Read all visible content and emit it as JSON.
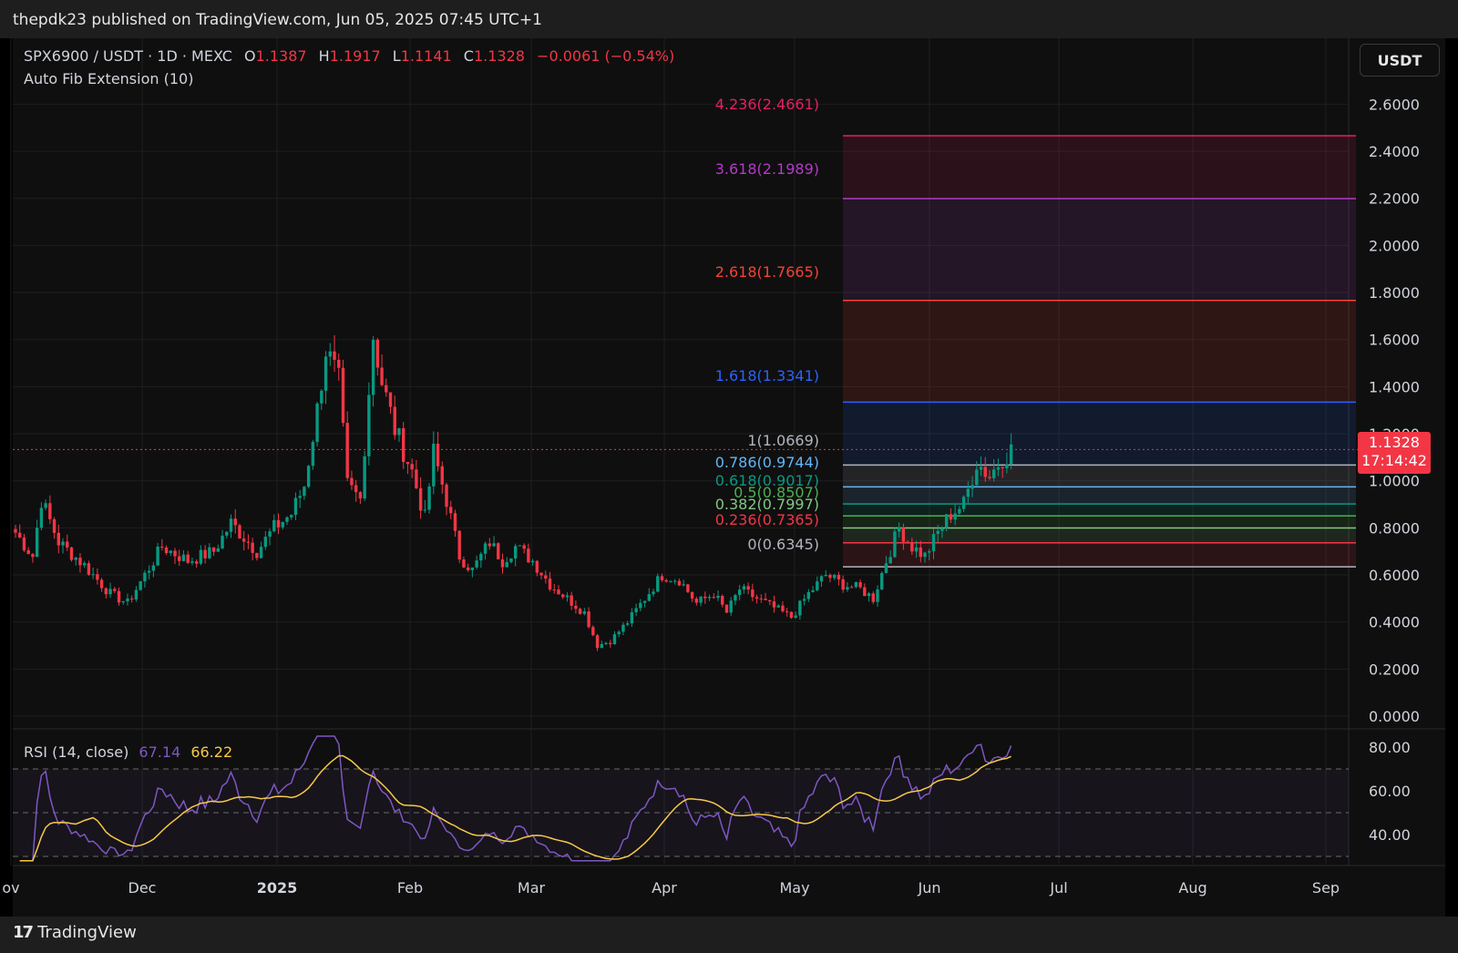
{
  "header": {
    "published": "thepdk23 published on TradingView.com, Jun 05, 2025 07:45 UTC+1"
  },
  "legend": {
    "symbol": "SPX6900 / USDT · 1D · MEXC",
    "o_label": "O",
    "o_value": "1.1387",
    "h_label": "H",
    "h_value": "1.1917",
    "l_label": "L",
    "l_value": "1.1141",
    "c_label": "C",
    "c_value": "1.1328",
    "change": "−0.0061 (−0.54%)",
    "indicator": "Auto Fib Extension (10)"
  },
  "rsi_legend": {
    "label": "RSI (14, close)",
    "rsi_value": "67.14",
    "ma_value": "66.22"
  },
  "currency_button": "USDT",
  "price_tag": {
    "price": "1.1328",
    "countdown": "17:14:42"
  },
  "footer": {
    "brand": "TradingView"
  },
  "colors": {
    "up": "#089981",
    "down": "#f23645",
    "rsi": "#7e57c2",
    "rsi_ma": "#f7c948",
    "background": "#0f0f0f"
  },
  "chart_data": {
    "type": "candlestick",
    "price_axis": {
      "ticks": [
        "2.6000",
        "2.4000",
        "2.2000",
        "2.0000",
        "1.8000",
        "1.6000",
        "1.4000",
        "1.2000",
        "1.0000",
        "0.8000",
        "0.6000",
        "0.4000",
        "0.2000",
        "0.0000"
      ],
      "ylim": [
        0,
        2.6
      ]
    },
    "time_axis": {
      "ticks": [
        "ov",
        "Dec",
        "2025",
        "Feb",
        "Mar",
        "Apr",
        "May",
        "Jun",
        "Jul",
        "Aug",
        "Sep"
      ]
    },
    "fib_levels": [
      {
        "label": "4.236(2.4661)",
        "price": 2.4661,
        "color": "#e91e63"
      },
      {
        "label": "3.618(2.1989)",
        "price": 2.1989,
        "color": "#b23ac7"
      },
      {
        "label": "2.618(1.7665)",
        "price": 1.7665,
        "color": "#f44336"
      },
      {
        "label": "1.618(1.3341)",
        "price": 1.3341,
        "color": "#2962ff"
      },
      {
        "label": "1(1.0669)",
        "price": 1.0669,
        "color": "#b2b5be"
      },
      {
        "label": "0.786(0.9744)",
        "price": 0.9744,
        "color": "#64b5f6"
      },
      {
        "label": "0.618(0.9017)",
        "price": 0.9017,
        "color": "#089981"
      },
      {
        "label": "0.5(0.8507)",
        "price": 0.8507,
        "color": "#4caf50"
      },
      {
        "label": "0.382(0.7997)",
        "price": 0.7997,
        "color": "#81c784"
      },
      {
        "label": "0.236(0.7365)",
        "price": 0.7365,
        "color": "#f23645"
      },
      {
        "label": "0(0.6345)",
        "price": 0.6345,
        "color": "#b2b5be"
      }
    ],
    "last_price": 1.1328,
    "close_series": {
      "start_date": "2024-10-28",
      "anchors": [
        [
          0,
          0.78
        ],
        [
          4,
          0.68
        ],
        [
          6,
          0.92
        ],
        [
          10,
          0.74
        ],
        [
          16,
          0.64
        ],
        [
          22,
          0.52
        ],
        [
          26,
          0.48
        ],
        [
          30,
          0.6
        ],
        [
          34,
          0.72
        ],
        [
          40,
          0.66
        ],
        [
          46,
          0.7
        ],
        [
          50,
          0.82
        ],
        [
          56,
          0.7
        ],
        [
          60,
          0.8
        ],
        [
          64,
          0.86
        ],
        [
          67,
          0.98
        ],
        [
          70,
          1.3
        ],
        [
          72,
          1.56
        ],
        [
          75,
          1.42
        ],
        [
          77,
          0.98
        ],
        [
          80,
          0.92
        ],
        [
          83,
          1.62
        ],
        [
          85,
          1.42
        ],
        [
          88,
          1.22
        ],
        [
          92,
          1.04
        ],
        [
          95,
          0.84
        ],
        [
          97,
          1.12
        ],
        [
          100,
          0.92
        ],
        [
          103,
          0.68
        ],
        [
          106,
          0.62
        ],
        [
          110,
          0.74
        ],
        [
          113,
          0.66
        ],
        [
          116,
          0.72
        ],
        [
          120,
          0.66
        ],
        [
          124,
          0.56
        ],
        [
          128,
          0.5
        ],
        [
          132,
          0.44
        ],
        [
          135,
          0.3
        ],
        [
          138,
          0.32
        ],
        [
          142,
          0.4
        ],
        [
          146,
          0.5
        ],
        [
          150,
          0.6
        ],
        [
          154,
          0.58
        ],
        [
          158,
          0.48
        ],
        [
          162,
          0.52
        ],
        [
          165,
          0.44
        ],
        [
          168,
          0.54
        ],
        [
          172,
          0.5
        ],
        [
          176,
          0.46
        ],
        [
          180,
          0.42
        ],
        [
          184,
          0.52
        ],
        [
          188,
          0.6
        ],
        [
          192,
          0.56
        ],
        [
          196,
          0.54
        ],
        [
          199,
          0.5
        ],
        [
          202,
          0.66
        ],
        [
          205,
          0.8
        ],
        [
          208,
          0.72
        ],
        [
          211,
          0.68
        ],
        [
          214,
          0.78
        ],
        [
          217,
          0.86
        ],
        [
          220,
          0.9
        ],
        [
          223,
          1.08
        ],
        [
          226,
          1.02
        ],
        [
          229,
          1.1
        ],
        [
          231,
          1.13
        ]
      ]
    },
    "rsi_axis": {
      "ticks": [
        "80.00",
        "60.00",
        "40.00"
      ],
      "bands": [
        70,
        50,
        30
      ]
    }
  }
}
